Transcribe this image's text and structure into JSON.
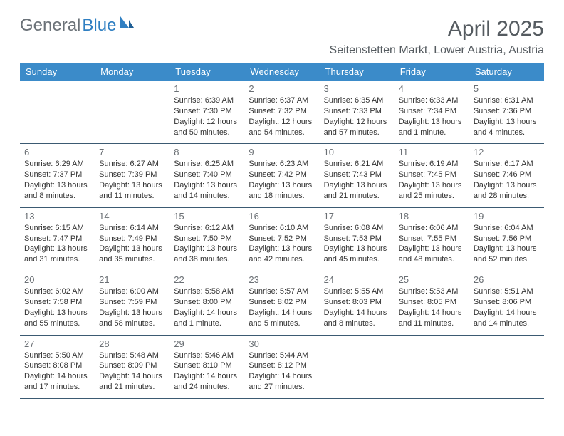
{
  "brand": {
    "part1": "General",
    "part2": "Blue",
    "color_general": "#6b7278",
    "color_blue": "#2f7fc2",
    "icon_color": "#2f7fc2"
  },
  "title": "April 2025",
  "location": "Seitenstetten Markt, Lower Austria, Austria",
  "header_bg": "#3b8bc9",
  "header_fg": "#ffffff",
  "cell_border": "#3b5a72",
  "text_color": "#333333",
  "day_headers": [
    "Sunday",
    "Monday",
    "Tuesday",
    "Wednesday",
    "Thursday",
    "Friday",
    "Saturday"
  ],
  "weeks": [
    [
      null,
      null,
      {
        "n": "1",
        "sr": "Sunrise: 6:39 AM",
        "ss": "Sunset: 7:30 PM",
        "dl": "Daylight: 12 hours and 50 minutes."
      },
      {
        "n": "2",
        "sr": "Sunrise: 6:37 AM",
        "ss": "Sunset: 7:32 PM",
        "dl": "Daylight: 12 hours and 54 minutes."
      },
      {
        "n": "3",
        "sr": "Sunrise: 6:35 AM",
        "ss": "Sunset: 7:33 PM",
        "dl": "Daylight: 12 hours and 57 minutes."
      },
      {
        "n": "4",
        "sr": "Sunrise: 6:33 AM",
        "ss": "Sunset: 7:34 PM",
        "dl": "Daylight: 13 hours and 1 minute."
      },
      {
        "n": "5",
        "sr": "Sunrise: 6:31 AM",
        "ss": "Sunset: 7:36 PM",
        "dl": "Daylight: 13 hours and 4 minutes."
      }
    ],
    [
      {
        "n": "6",
        "sr": "Sunrise: 6:29 AM",
        "ss": "Sunset: 7:37 PM",
        "dl": "Daylight: 13 hours and 8 minutes."
      },
      {
        "n": "7",
        "sr": "Sunrise: 6:27 AM",
        "ss": "Sunset: 7:39 PM",
        "dl": "Daylight: 13 hours and 11 minutes."
      },
      {
        "n": "8",
        "sr": "Sunrise: 6:25 AM",
        "ss": "Sunset: 7:40 PM",
        "dl": "Daylight: 13 hours and 14 minutes."
      },
      {
        "n": "9",
        "sr": "Sunrise: 6:23 AM",
        "ss": "Sunset: 7:42 PM",
        "dl": "Daylight: 13 hours and 18 minutes."
      },
      {
        "n": "10",
        "sr": "Sunrise: 6:21 AM",
        "ss": "Sunset: 7:43 PM",
        "dl": "Daylight: 13 hours and 21 minutes."
      },
      {
        "n": "11",
        "sr": "Sunrise: 6:19 AM",
        "ss": "Sunset: 7:45 PM",
        "dl": "Daylight: 13 hours and 25 minutes."
      },
      {
        "n": "12",
        "sr": "Sunrise: 6:17 AM",
        "ss": "Sunset: 7:46 PM",
        "dl": "Daylight: 13 hours and 28 minutes."
      }
    ],
    [
      {
        "n": "13",
        "sr": "Sunrise: 6:15 AM",
        "ss": "Sunset: 7:47 PM",
        "dl": "Daylight: 13 hours and 31 minutes."
      },
      {
        "n": "14",
        "sr": "Sunrise: 6:14 AM",
        "ss": "Sunset: 7:49 PM",
        "dl": "Daylight: 13 hours and 35 minutes."
      },
      {
        "n": "15",
        "sr": "Sunrise: 6:12 AM",
        "ss": "Sunset: 7:50 PM",
        "dl": "Daylight: 13 hours and 38 minutes."
      },
      {
        "n": "16",
        "sr": "Sunrise: 6:10 AM",
        "ss": "Sunset: 7:52 PM",
        "dl": "Daylight: 13 hours and 42 minutes."
      },
      {
        "n": "17",
        "sr": "Sunrise: 6:08 AM",
        "ss": "Sunset: 7:53 PM",
        "dl": "Daylight: 13 hours and 45 minutes."
      },
      {
        "n": "18",
        "sr": "Sunrise: 6:06 AM",
        "ss": "Sunset: 7:55 PM",
        "dl": "Daylight: 13 hours and 48 minutes."
      },
      {
        "n": "19",
        "sr": "Sunrise: 6:04 AM",
        "ss": "Sunset: 7:56 PM",
        "dl": "Daylight: 13 hours and 52 minutes."
      }
    ],
    [
      {
        "n": "20",
        "sr": "Sunrise: 6:02 AM",
        "ss": "Sunset: 7:58 PM",
        "dl": "Daylight: 13 hours and 55 minutes."
      },
      {
        "n": "21",
        "sr": "Sunrise: 6:00 AM",
        "ss": "Sunset: 7:59 PM",
        "dl": "Daylight: 13 hours and 58 minutes."
      },
      {
        "n": "22",
        "sr": "Sunrise: 5:58 AM",
        "ss": "Sunset: 8:00 PM",
        "dl": "Daylight: 14 hours and 1 minute."
      },
      {
        "n": "23",
        "sr": "Sunrise: 5:57 AM",
        "ss": "Sunset: 8:02 PM",
        "dl": "Daylight: 14 hours and 5 minutes."
      },
      {
        "n": "24",
        "sr": "Sunrise: 5:55 AM",
        "ss": "Sunset: 8:03 PM",
        "dl": "Daylight: 14 hours and 8 minutes."
      },
      {
        "n": "25",
        "sr": "Sunrise: 5:53 AM",
        "ss": "Sunset: 8:05 PM",
        "dl": "Daylight: 14 hours and 11 minutes."
      },
      {
        "n": "26",
        "sr": "Sunrise: 5:51 AM",
        "ss": "Sunset: 8:06 PM",
        "dl": "Daylight: 14 hours and 14 minutes."
      }
    ],
    [
      {
        "n": "27",
        "sr": "Sunrise: 5:50 AM",
        "ss": "Sunset: 8:08 PM",
        "dl": "Daylight: 14 hours and 17 minutes."
      },
      {
        "n": "28",
        "sr": "Sunrise: 5:48 AM",
        "ss": "Sunset: 8:09 PM",
        "dl": "Daylight: 14 hours and 21 minutes."
      },
      {
        "n": "29",
        "sr": "Sunrise: 5:46 AM",
        "ss": "Sunset: 8:10 PM",
        "dl": "Daylight: 14 hours and 24 minutes."
      },
      {
        "n": "30",
        "sr": "Sunrise: 5:44 AM",
        "ss": "Sunset: 8:12 PM",
        "dl": "Daylight: 14 hours and 27 minutes."
      },
      null,
      null,
      null
    ]
  ]
}
